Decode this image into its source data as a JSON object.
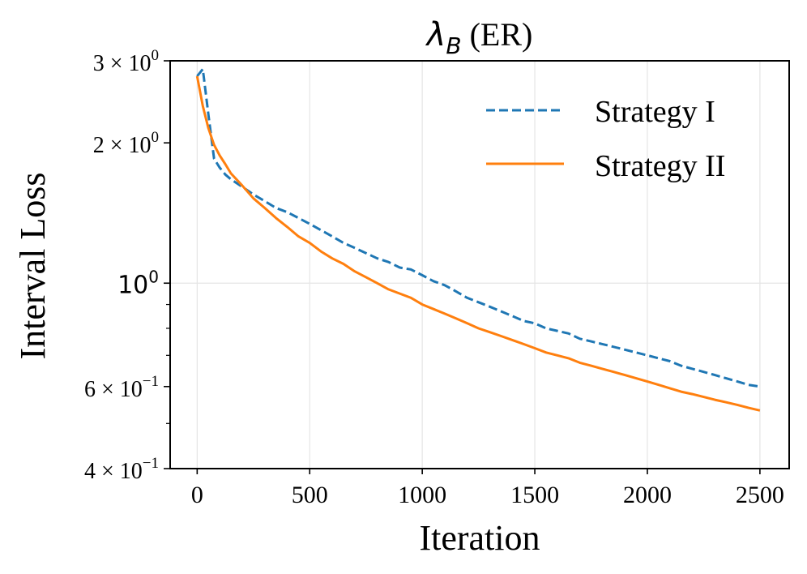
{
  "chart_data": {
    "type": "line",
    "title_main": "λ",
    "title_sub": "B",
    "title_rest": " (ER)",
    "xlabel": "Iteration",
    "ylabel": "Interval Loss",
    "x_scale": "linear",
    "y_scale": "log",
    "xlim": [
      -120,
      2630
    ],
    "ylim": [
      0.4,
      3.0
    ],
    "grid": true,
    "legend_placement": "upper-right",
    "x_ticks": [
      {
        "value": 0,
        "label": "0"
      },
      {
        "value": 500,
        "label": "500"
      },
      {
        "value": 1000,
        "label": "1000"
      },
      {
        "value": 1500,
        "label": "1500"
      },
      {
        "value": 2000,
        "label": "2000"
      },
      {
        "value": 2500,
        "label": "2500"
      }
    ],
    "y_ticks": [
      {
        "value": 3.0,
        "base": "3 × 10",
        "exp": "0"
      },
      {
        "value": 2.0,
        "base": "2 × 10",
        "exp": "0"
      },
      {
        "value": 1.0,
        "base": "10",
        "exp": "0"
      },
      {
        "value": 0.6,
        "base": "6 × 10",
        "exp": "−1"
      },
      {
        "value": 0.4,
        "base": "4 × 10",
        "exp": "−1"
      }
    ],
    "y_minor_ticks": [
      0.5,
      0.7,
      0.8,
      0.9
    ],
    "series": [
      {
        "name": "Strategy I",
        "color": "#1f77b4",
        "style": "dashed",
        "x": [
          0,
          25,
          50,
          75,
          100,
          125,
          150,
          200,
          250,
          300,
          350,
          400,
          450,
          500,
          550,
          600,
          650,
          700,
          750,
          800,
          850,
          900,
          950,
          1000,
          1050,
          1100,
          1150,
          1200,
          1250,
          1300,
          1350,
          1400,
          1450,
          1500,
          1550,
          1600,
          1650,
          1700,
          1750,
          1800,
          1850,
          1900,
          1950,
          2000,
          2050,
          2100,
          2150,
          2200,
          2250,
          2300,
          2350,
          2400,
          2450,
          2500
        ],
        "y": [
          2.78,
          2.88,
          2.3,
          1.85,
          1.77,
          1.71,
          1.67,
          1.61,
          1.55,
          1.5,
          1.45,
          1.42,
          1.38,
          1.34,
          1.3,
          1.26,
          1.22,
          1.19,
          1.16,
          1.13,
          1.11,
          1.08,
          1.07,
          1.04,
          1.01,
          0.99,
          0.96,
          0.93,
          0.91,
          0.89,
          0.87,
          0.85,
          0.83,
          0.82,
          0.8,
          0.79,
          0.78,
          0.76,
          0.75,
          0.74,
          0.73,
          0.72,
          0.71,
          0.7,
          0.69,
          0.68,
          0.665,
          0.655,
          0.645,
          0.635,
          0.625,
          0.615,
          0.605,
          0.6
        ]
      },
      {
        "name": "Strategy II",
        "color": "#ff7f0e",
        "style": "solid",
        "x": [
          0,
          25,
          50,
          75,
          100,
          125,
          150,
          200,
          250,
          300,
          350,
          400,
          450,
          500,
          550,
          600,
          650,
          700,
          750,
          800,
          850,
          900,
          950,
          1000,
          1050,
          1100,
          1150,
          1200,
          1250,
          1300,
          1350,
          1400,
          1450,
          1500,
          1550,
          1600,
          1650,
          1700,
          1750,
          1800,
          1850,
          1900,
          1950,
          2000,
          2050,
          2100,
          2150,
          2200,
          2250,
          2300,
          2350,
          2400,
          2450,
          2500
        ],
        "y": [
          2.78,
          2.4,
          2.15,
          1.98,
          1.88,
          1.8,
          1.72,
          1.62,
          1.52,
          1.45,
          1.38,
          1.32,
          1.26,
          1.22,
          1.17,
          1.13,
          1.1,
          1.06,
          1.03,
          1.0,
          0.97,
          0.95,
          0.93,
          0.9,
          0.88,
          0.86,
          0.84,
          0.82,
          0.8,
          0.785,
          0.77,
          0.755,
          0.74,
          0.725,
          0.71,
          0.7,
          0.69,
          0.675,
          0.665,
          0.655,
          0.645,
          0.635,
          0.625,
          0.615,
          0.605,
          0.595,
          0.585,
          0.578,
          0.57,
          0.562,
          0.555,
          0.548,
          0.54,
          0.533
        ]
      }
    ]
  }
}
